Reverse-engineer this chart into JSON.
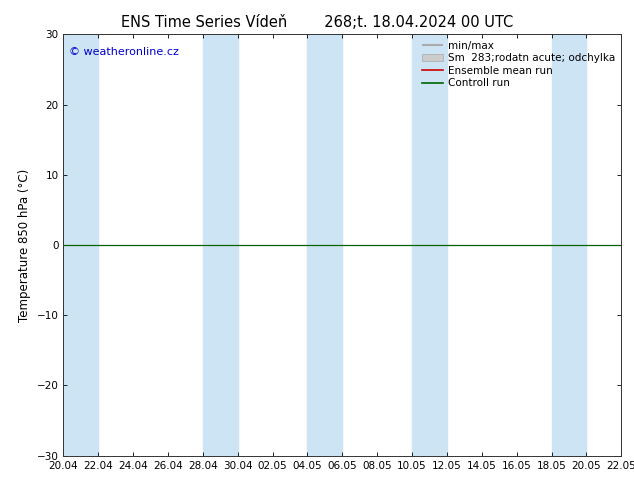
{
  "title_left": "ENS Time Series Vídeň",
  "title_right": "268;t. 18.04.2024 00 UTC",
  "ylabel": "Temperature 850 hPa (°C)",
  "watermark": "© weatheronline.cz",
  "ylim": [
    -30,
    30
  ],
  "yticks": [
    -30,
    -20,
    -10,
    0,
    10,
    20,
    30
  ],
  "xtick_labels": [
    "20.04",
    "22.04",
    "24.04",
    "26.04",
    "28.04",
    "30.04",
    "02.05",
    "04.05",
    "06.05",
    "08.05",
    "10.05",
    "12.05",
    "14.05",
    "16.05",
    "18.05",
    "20.05",
    "22.05"
  ],
  "background_color": "#ffffff",
  "plot_bg_color": "#ffffff",
  "band_color": "#cde4f5",
  "band_xranges": [
    [
      0,
      2
    ],
    [
      8,
      10
    ],
    [
      14,
      16
    ],
    [
      20,
      22
    ],
    [
      28,
      30
    ]
  ],
  "hline_y": 0,
  "hline_color": "#006400",
  "title_fontsize": 10.5,
  "tick_fontsize": 7.5,
  "ylabel_fontsize": 8.5,
  "watermark_color": "#0000cc",
  "legend_fontsize": 7.5
}
